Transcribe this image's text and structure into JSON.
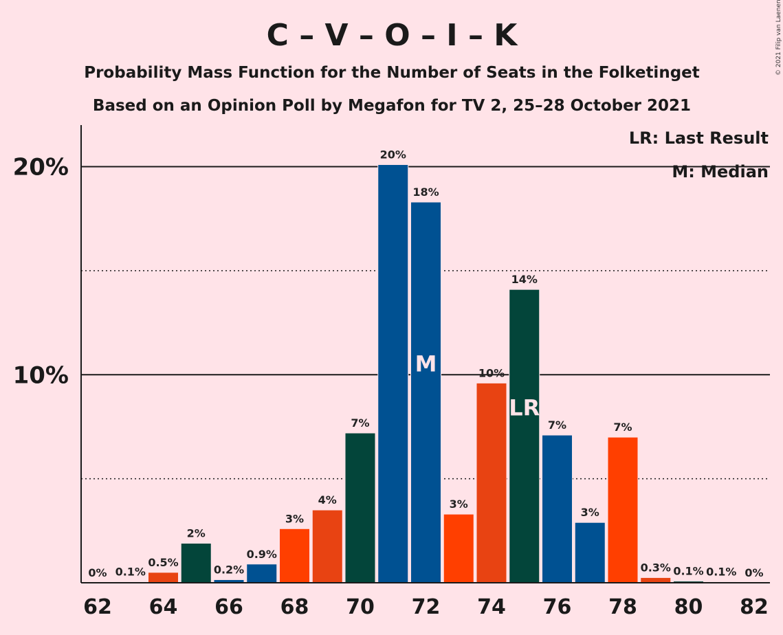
{
  "copyright": "© 2021 Filip van Laenen",
  "chart_data": {
    "type": "bar",
    "title": "C – V – O – I – K",
    "subtitle": "Probability Mass Function for the Number of Seats in the Folketinget",
    "subtitle2": "Based on an Opinion Poll by Megafon for TV 2, 25–28 October 2021",
    "legend": {
      "lr": "LR: Last Result",
      "m": "M: Median",
      "placement": "top-right"
    },
    "xlabel": "",
    "ylabel": "",
    "ylim": [
      0,
      22
    ],
    "yticks": [
      {
        "value": 10,
        "label": "10%"
      },
      {
        "value": 20,
        "label": "20%"
      }
    ],
    "dotted_gridlines": [
      5,
      15
    ],
    "xticks": [
      62,
      64,
      66,
      68,
      70,
      72,
      74,
      76,
      78,
      80,
      82
    ],
    "categories": [
      62,
      63,
      64,
      65,
      66,
      67,
      68,
      69,
      70,
      71,
      72,
      73,
      74,
      75,
      76,
      77,
      78,
      79,
      80,
      81,
      82
    ],
    "values": [
      0,
      0.05,
      0.5,
      1.9,
      0.15,
      0.9,
      2.6,
      3.5,
      7.2,
      20.1,
      18.3,
      3.3,
      9.6,
      14.1,
      7.1,
      2.9,
      7.0,
      0.25,
      0.08,
      0.05,
      0
    ],
    "data_labels": [
      "0%",
      "0.1%",
      "0.5%",
      "2%",
      "0.2%",
      "0.9%",
      "3%",
      "4%",
      "7%",
      "20%",
      "18%",
      "3%",
      "10%",
      "14%",
      "7%",
      "3%",
      "7%",
      "0.3%",
      "0.1%",
      "0.1%",
      "0%"
    ],
    "bar_colors": [
      "#ff3f00",
      "#005192",
      "#e84312",
      "#03453a",
      "#005192",
      "#005192",
      "#ff3f00",
      "#e84312",
      "#03453a",
      "#005192",
      "#005192",
      "#ff3f00",
      "#e84312",
      "#03453a",
      "#005192",
      "#005192",
      "#ff3f00",
      "#e84312",
      "#03453a",
      "#005192",
      "#005192"
    ],
    "markers": [
      {
        "category": 72,
        "label": "M"
      },
      {
        "category": 75,
        "label": "LR"
      }
    ],
    "grid": true
  }
}
